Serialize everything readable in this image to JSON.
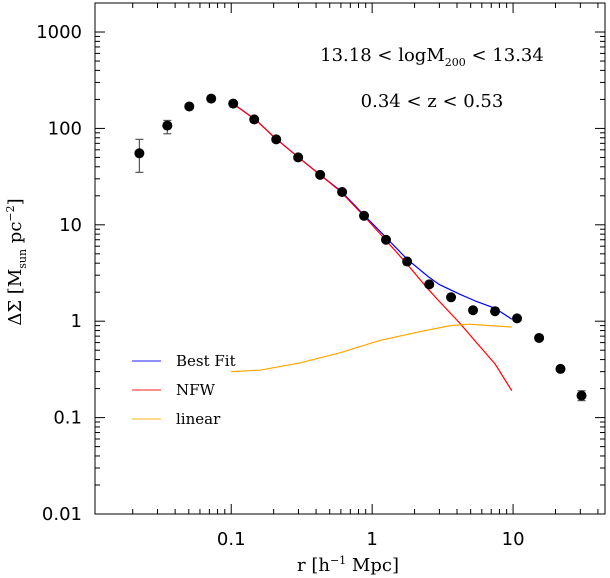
{
  "chart_data": {
    "type": "scatter",
    "title": "",
    "xlabel": "r [h⁻¹ Mpc]",
    "xlabel_parts": {
      "main": "r  [h",
      "sup": "−1",
      "tail": "  Mpc]"
    },
    "ylabel": "ΔΣ  [M_sun pc⁻²]",
    "ylabel_parts": {
      "sym": "ΔΣ",
      "open": "[M",
      "sub": "sun",
      "mid": "  pc",
      "sup": "−2",
      "close": "]"
    },
    "xscale": "log",
    "yscale": "log",
    "xlim": [
      0.0108,
      44.9
    ],
    "ylim": [
      0.01,
      2000
    ],
    "grid": false,
    "xticks": [
      {
        "value": 0.1,
        "label": "0.1"
      },
      {
        "value": 1,
        "label": "1"
      },
      {
        "value": 10,
        "label": "10"
      }
    ],
    "yticks": [
      {
        "value": 0.01,
        "label": "0.01"
      },
      {
        "value": 0.1,
        "label": "0.1"
      },
      {
        "value": 1,
        "label": "1"
      },
      {
        "value": 10,
        "label": "10"
      },
      {
        "value": 100,
        "label": "100"
      },
      {
        "value": 1000,
        "label": "1000"
      }
    ],
    "annotations": [
      {
        "parts": {
          "pre": "13.18  <  logM",
          "sub": "200",
          "post": "  <  13.34"
        },
        "text": "13.18 < logM200 < 13.34",
        "position": "top-right"
      },
      {
        "parts": {
          "pre": "0.34  <  z  <  0.53"
        },
        "text": "0.34 < z < 0.53",
        "position": "top-right"
      }
    ],
    "legend_position": "lower-left",
    "points": {
      "name": "data",
      "color": "#000000",
      "x": [
        0.0223,
        0.0352,
        0.0504,
        0.0721,
        0.1033,
        0.1456,
        0.2086,
        0.2985,
        0.4275,
        0.612,
        0.876,
        1.254,
        1.771,
        2.541,
        3.63,
        5.2,
        7.45,
        10.67,
        15.3,
        21.7,
        30.6
      ],
      "y": [
        55.2,
        107,
        169,
        204,
        181,
        124,
        77,
        50,
        33,
        21.9,
        12.4,
        7.0,
        4.16,
        2.41,
        1.77,
        1.3,
        1.27,
        1.07,
        0.67,
        0.32,
        0.169
      ],
      "yerr_low": [
        35,
        88,
        null,
        null,
        null,
        null,
        null,
        null,
        null,
        null,
        null,
        null,
        null,
        null,
        null,
        null,
        null,
        null,
        null,
        null,
        0.15
      ],
      "yerr_high": [
        77,
        121,
        null,
        null,
        null,
        null,
        null,
        null,
        null,
        null,
        null,
        null,
        null,
        null,
        null,
        null,
        null,
        null,
        null,
        null,
        0.19
      ]
    },
    "series": [
      {
        "name": "Best Fit",
        "color": "#0000ff",
        "x": [
          0.103,
          0.15,
          0.2,
          0.3,
          0.45,
          0.6,
          0.876,
          1.254,
          1.77,
          2.5,
          3.0,
          4.2,
          5.5,
          7.45,
          9.8
        ],
        "y": [
          181,
          122,
          82,
          50,
          31,
          22.5,
          12.6,
          7.4,
          4.4,
          2.9,
          2.4,
          1.9,
          1.6,
          1.36,
          1.05
        ]
      },
      {
        "name": "NFW",
        "color": "#ff0000",
        "x": [
          0.103,
          0.15,
          0.2,
          0.3,
          0.45,
          0.6,
          0.876,
          1.254,
          1.77,
          2.5,
          3.0,
          4.2,
          5.5,
          7.45,
          9.8
        ],
        "y": [
          181,
          122,
          82,
          50,
          31,
          22,
          12.3,
          6.9,
          3.9,
          2.15,
          1.6,
          0.95,
          0.6,
          0.36,
          0.19
        ]
      },
      {
        "name": "linear",
        "color": "#ffa500",
        "x": [
          0.1,
          0.16,
          0.31,
          0.59,
          1.13,
          2.2,
          3.6,
          4.9,
          6.9,
          9.8
        ],
        "y": [
          0.3,
          0.31,
          0.37,
          0.47,
          0.63,
          0.78,
          0.9,
          0.93,
          0.9,
          0.87
        ]
      }
    ]
  }
}
